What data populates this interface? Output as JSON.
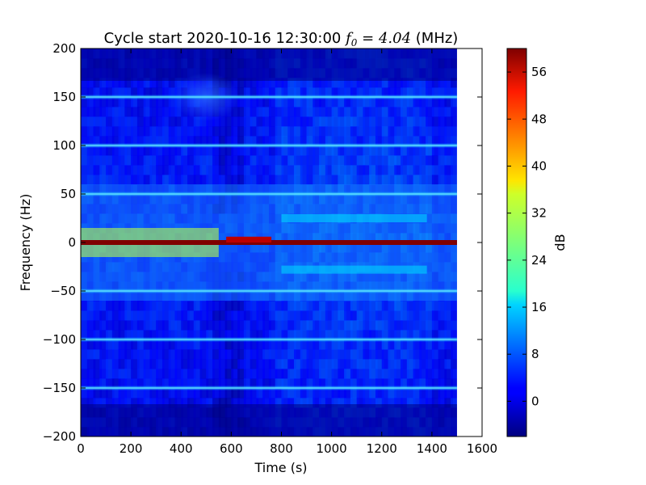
{
  "chart_data": {
    "type": "heatmap",
    "title": "Cycle start 2020-10-16 12:30:00",
    "title_math": "f",
    "title_math_sub": "0",
    "title_math_value": " = 4.04",
    "title_unit": " (MHz)",
    "xlabel": "Time (s)",
    "ylabel": "Frequency (Hz)",
    "xlim": [
      0,
      1600
    ],
    "ylim": [
      -200,
      200
    ],
    "x_ticks": [
      "0",
      "200",
      "400",
      "600",
      "800",
      "1000",
      "1200",
      "1400",
      "1600"
    ],
    "y_ticks": [
      "200",
      "150",
      "100",
      "50",
      "0",
      "−50",
      "−100",
      "−150",
      "−200"
    ],
    "data_time_extent": [
      0,
      1500
    ],
    "colormap": "jet",
    "colorbar": {
      "label": "dB",
      "range": [
        -6,
        60
      ],
      "ticks": [
        "56",
        "48",
        "40",
        "32",
        "24",
        "16",
        "8",
        "0"
      ]
    },
    "features": {
      "harmonic_lines_hz": [
        150,
        100,
        50,
        -50,
        -100,
        -150
      ],
      "carrier_line_hz": 0,
      "carrier_level_db": 60,
      "enhanced_band_before_s": 550,
      "enhanced_band_hz": [
        15,
        -15
      ],
      "bright_patch": {
        "time_s": [
          580,
          760
        ],
        "level_db": 56
      },
      "sidebands_after": {
        "time_s": [
          800,
          1380
        ],
        "freq_hz": [
          25,
          -28
        ],
        "level_db": 16
      },
      "background_level_db": 0
    }
  }
}
